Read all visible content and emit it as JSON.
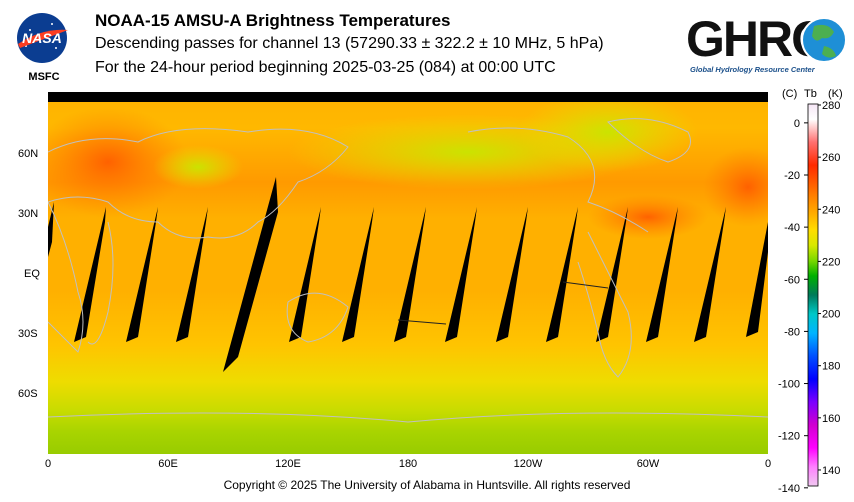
{
  "header": {
    "title": "NOAA-15 AMSU-A Brightness Temperatures",
    "line2": "Descending passes for channel 13 (57290.33 ± 322.2 ± 10 MHz, 5 hPa)",
    "line3": "For the 24-hour period beginning 2025-03-25 (084) at 00:00 UTC"
  },
  "nasa_logo": {
    "icon": "nasa-meatball-logo",
    "wordmark": "NASA",
    "caption": "MSFC"
  },
  "ghrc_logo": {
    "icon": "ghrc-globe-logo",
    "wordmark": "GHRC",
    "caption": "Global Hydrology Resource Center"
  },
  "map": {
    "lat_labels": [
      "60N",
      "30N",
      "EQ",
      "30S",
      "60S"
    ],
    "lon_labels": [
      "0",
      "60E",
      "120E",
      "180",
      "120W",
      "60W",
      "0"
    ]
  },
  "colorbar": {
    "header_c": "(C)",
    "header_tb": "Tb",
    "header_k": "(K)",
    "celsius_ticks": [
      "0",
      "-20",
      "-40",
      "-60",
      "-80",
      "-100",
      "-120",
      "-140"
    ],
    "kelvin_ticks": [
      "280",
      "260",
      "240",
      "220",
      "200",
      "180",
      "160",
      "140"
    ],
    "colors": [
      "#f5e6f5",
      "#ffffff",
      "#ff6a6a",
      "#ff2a00",
      "#ff7f00",
      "#ffb000",
      "#ffdd00",
      "#d8e800",
      "#7ad800",
      "#00b000",
      "#007a5a",
      "#00c8c8",
      "#00b4ff",
      "#0050ff",
      "#0000ff",
      "#7a00ff",
      "#d000d0",
      "#ff00ff",
      "#ff80ff",
      "#f0c8f0"
    ]
  },
  "footer": {
    "copyright": "Copyright © 2025 The University of Alabama in Huntsville.  All rights reserved"
  }
}
